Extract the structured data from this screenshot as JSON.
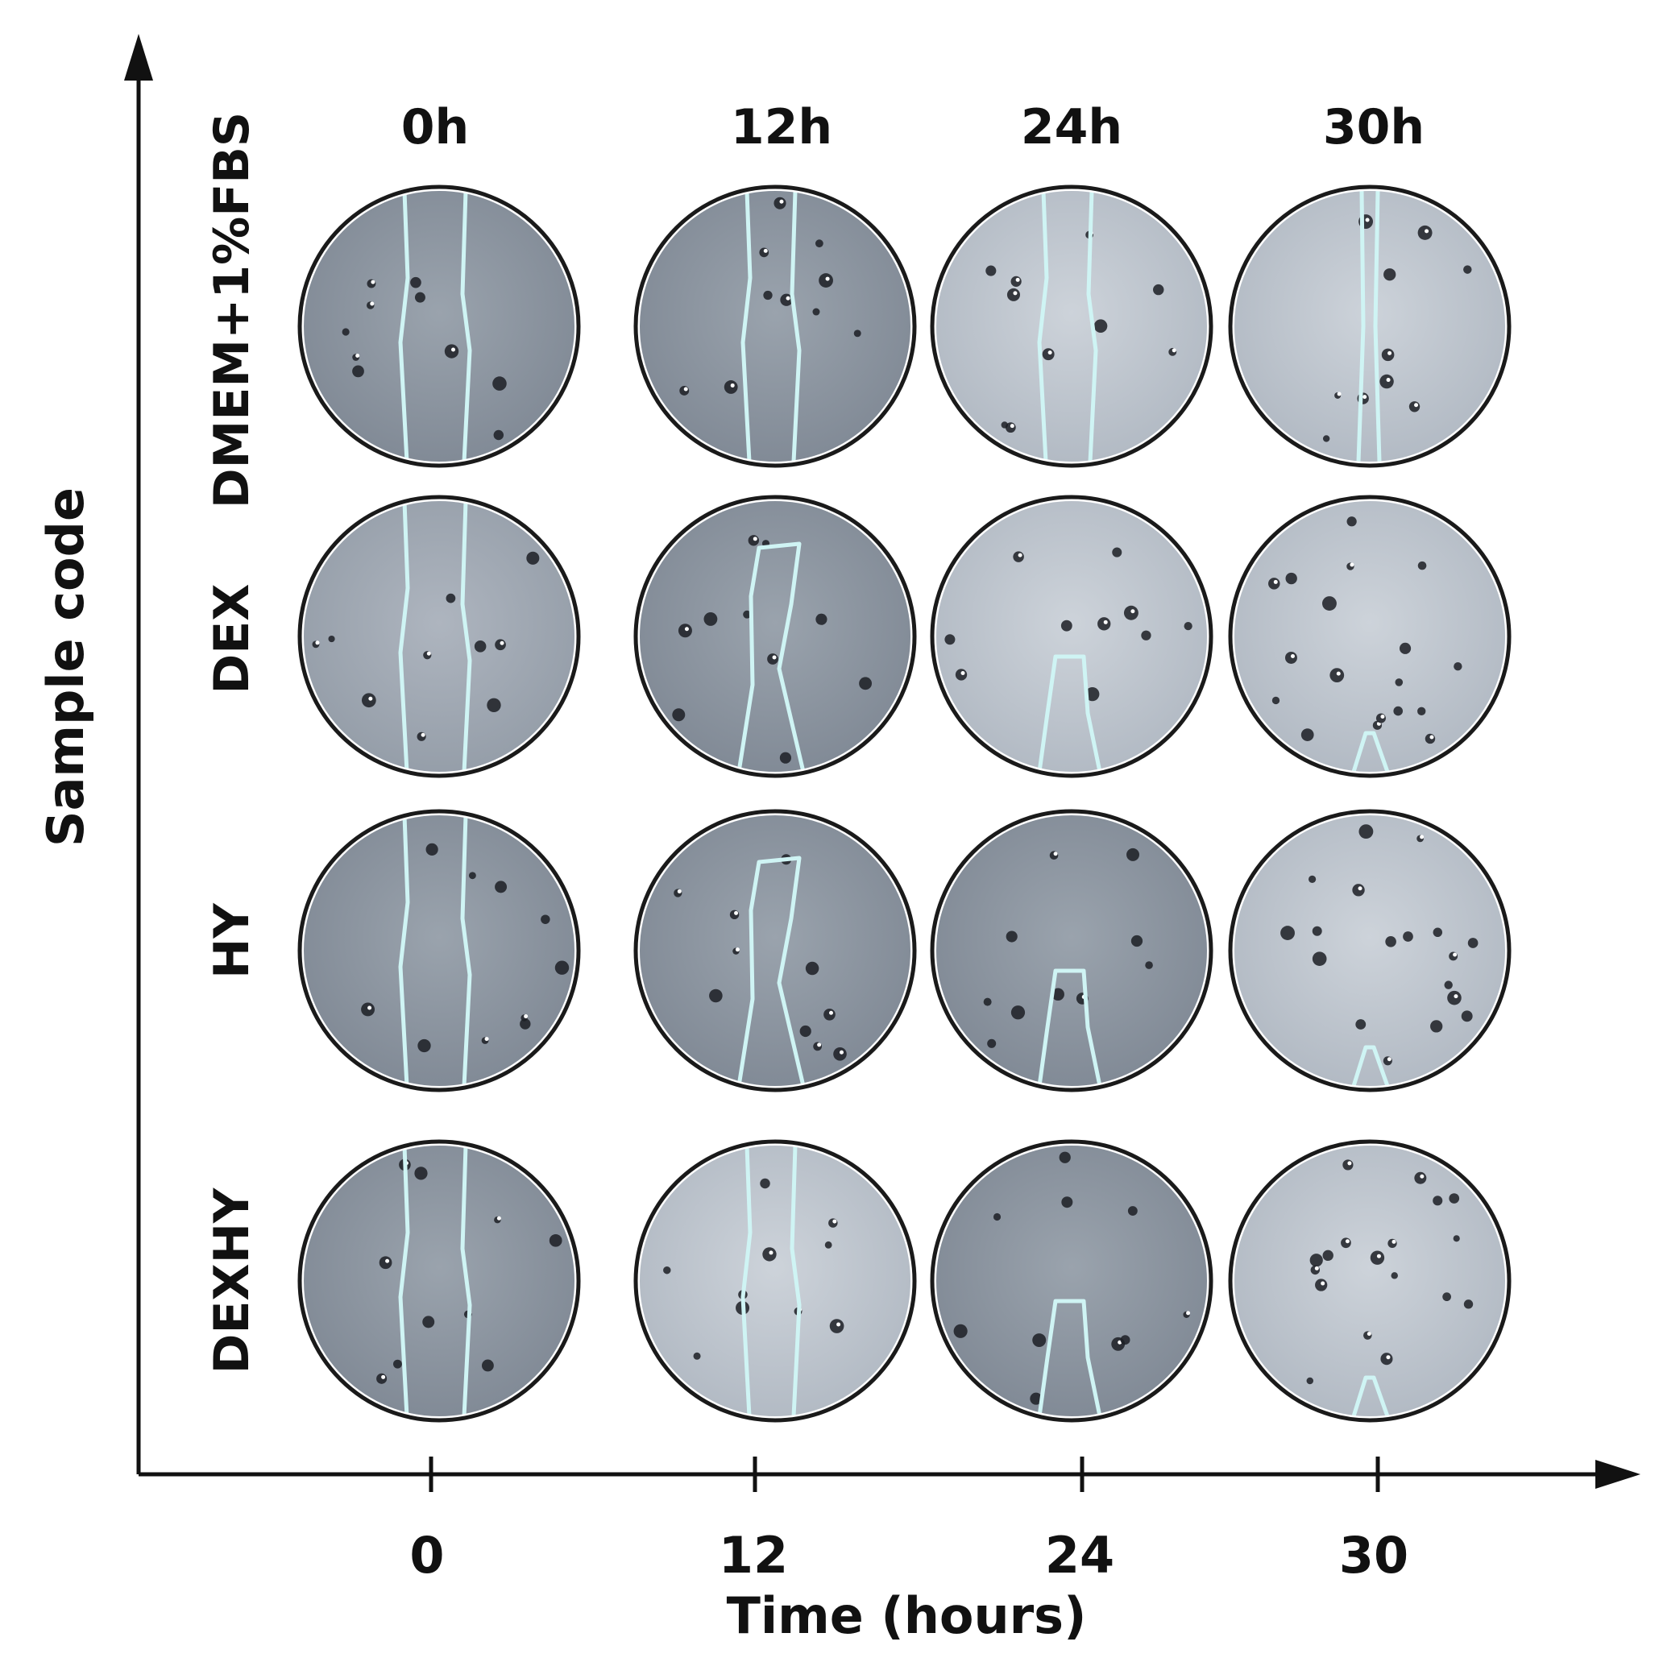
{
  "axes": {
    "x_title": "Time (hours)",
    "y_title": "Sample code",
    "x_ticks": [
      "0",
      "12",
      "24",
      "30"
    ]
  },
  "columns": [
    "0h",
    "12h",
    "24h",
    "30h"
  ],
  "rows": [
    "DMEM+1%FBS",
    "DEX",
    "HY",
    "DEXHY"
  ],
  "colors": {
    "outline": "#cff4f4",
    "axis": "#111111",
    "well_dark": "#8e97a2",
    "well_light": "#bcc3cc"
  },
  "wells": [
    {
      "row": "DMEM+1%FBS",
      "time": "0h",
      "shade": "dark",
      "wound": "open"
    },
    {
      "row": "DMEM+1%FBS",
      "time": "12h",
      "shade": "dark",
      "wound": "open"
    },
    {
      "row": "DMEM+1%FBS",
      "time": "24h",
      "shade": "light",
      "wound": "open"
    },
    {
      "row": "DMEM+1%FBS",
      "time": "30h",
      "shade": "light",
      "wound": "narrow"
    },
    {
      "row": "DEX",
      "time": "0h",
      "shade": "mid",
      "wound": "open"
    },
    {
      "row": "DEX",
      "time": "12h",
      "shade": "dark",
      "wound": "closing"
    },
    {
      "row": "DEX",
      "time": "24h",
      "shade": "light",
      "wound": "nearly-closed"
    },
    {
      "row": "DEX",
      "time": "30h",
      "shade": "light",
      "wound": "closed"
    },
    {
      "row": "HY",
      "time": "0h",
      "shade": "dark",
      "wound": "open"
    },
    {
      "row": "HY",
      "time": "12h",
      "shade": "dark",
      "wound": "closing"
    },
    {
      "row": "HY",
      "time": "24h",
      "shade": "dark",
      "wound": "nearly-closed"
    },
    {
      "row": "HY",
      "time": "30h",
      "shade": "light",
      "wound": "closed"
    },
    {
      "row": "DEXHY",
      "time": "0h",
      "shade": "dark",
      "wound": "open"
    },
    {
      "row": "DEXHY",
      "time": "12h",
      "shade": "light",
      "wound": "open"
    },
    {
      "row": "DEXHY",
      "time": "24h",
      "shade": "dark",
      "wound": "nearly-closed"
    },
    {
      "row": "DEXHY",
      "time": "30h",
      "shade": "light",
      "wound": "closed"
    }
  ]
}
